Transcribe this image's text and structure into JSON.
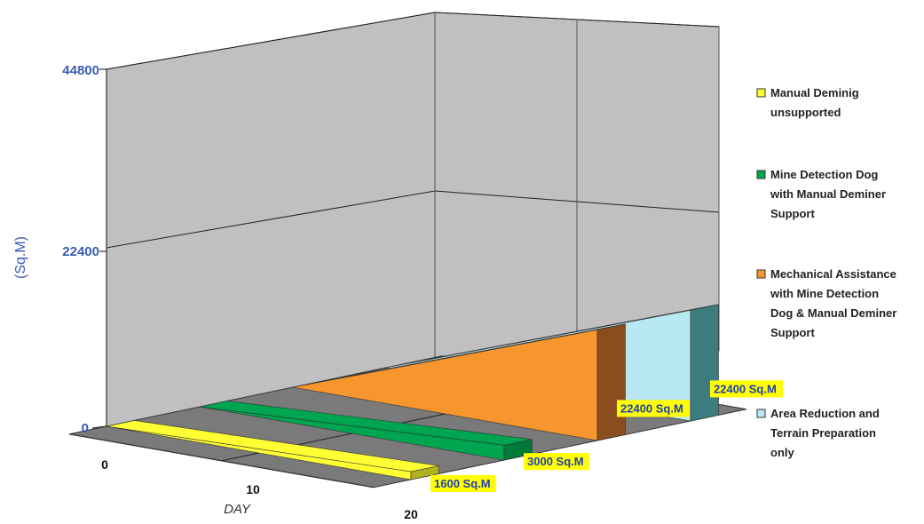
{
  "chart_data": {
    "type": "area",
    "title": "",
    "ylabel": "(Sq.M)",
    "xlabel": "DAY",
    "ylim": [
      0,
      44800
    ],
    "yticks": [
      "0",
      "22400",
      "44800"
    ],
    "xticks": [
      "0",
      "10",
      "20"
    ],
    "grid": true,
    "legend_position": "right",
    "series": [
      {
        "name": "Manual Deminig unsupported",
        "x": [
          0,
          20
        ],
        "values": [
          0,
          1600
        ],
        "end_label": "1600 Sq.M",
        "color": "#ffff33",
        "side_color": "#b0b020"
      },
      {
        "name": "Mine Detection Dog with Manual Deminer Support",
        "x": [
          0,
          20
        ],
        "values": [
          0,
          3000
        ],
        "end_label": "3000 Sq.M",
        "color": "#00a550",
        "side_color": "#007a38"
      },
      {
        "name": "Mechanical Assistance with Mine Detection Dog & Manual Deminer Support",
        "x": [
          0,
          20
        ],
        "values": [
          0,
          22400
        ],
        "end_label": "22400 Sq.M",
        "color": "#f7962f",
        "side_color": "#8a4e1e"
      },
      {
        "name": "Area Reduction and Terrain Preparation only",
        "x": [
          0,
          20
        ],
        "values": [
          0,
          22400
        ],
        "end_label": "22400 Sq.M",
        "color": "#b8e8f2",
        "side_color": "#3c7d80"
      }
    ]
  }
}
